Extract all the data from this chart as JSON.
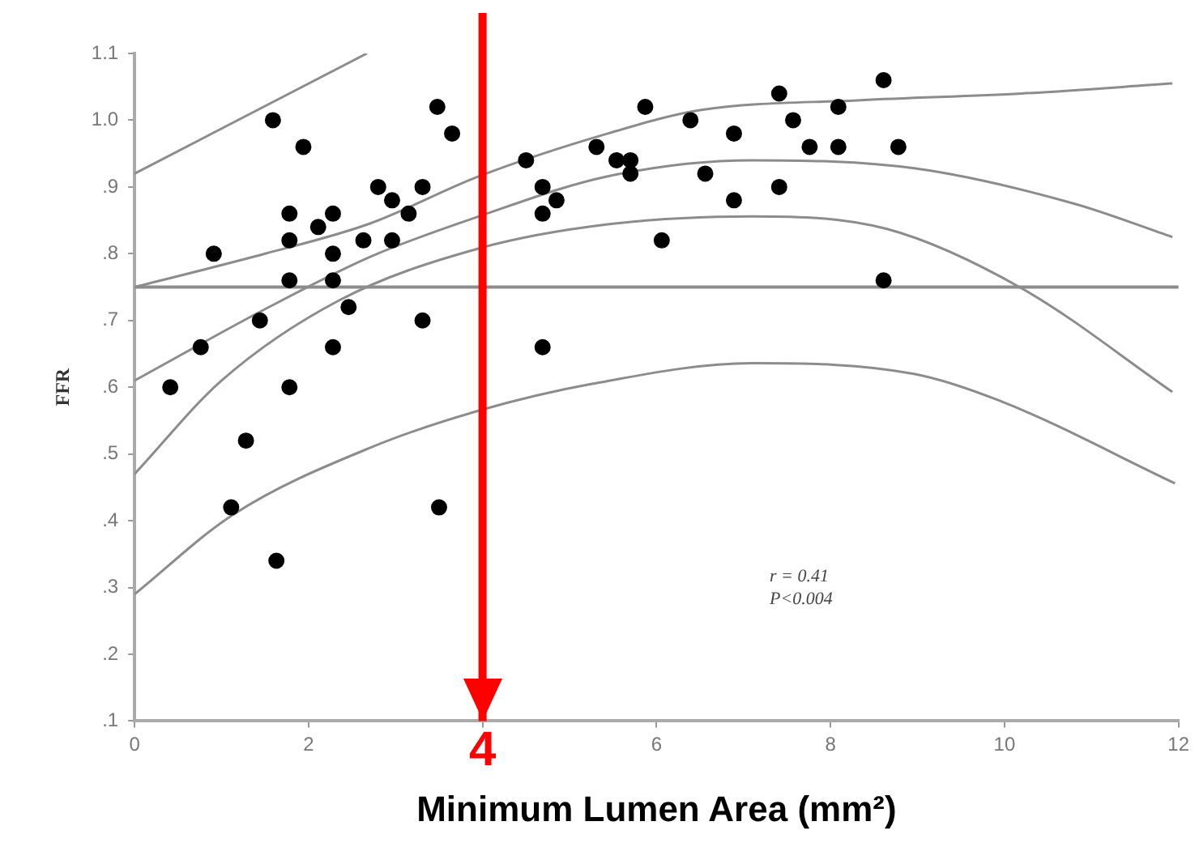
{
  "chart_data": {
    "type": "scatter",
    "xlabel": "Minimum Lumen Area (mm²)",
    "ylabel": "FFR",
    "xlim": [
      0,
      12
    ],
    "xticks": [
      0,
      2,
      {
        "value": 4,
        "label": null
      },
      6,
      8,
      10,
      12
    ],
    "ylim": [
      0.1,
      1.1
    ],
    "yticks": [
      {
        "value": 0.1,
        "label": ".1"
      },
      {
        "value": 0.2,
        "label": ".2"
      },
      {
        "value": 0.3,
        "label": ".3"
      },
      {
        "value": 0.4,
        "label": ".4"
      },
      {
        "value": 0.5,
        "label": ".5"
      },
      {
        "value": 0.6,
        "label": ".6"
      },
      {
        "value": 0.7,
        "label": ".7"
      },
      {
        "value": 0.8,
        "label": ".8"
      },
      {
        "value": 0.9,
        "label": ".9"
      },
      {
        "value": 1.0,
        "label": "1.0"
      },
      {
        "value": 1.1,
        "label": "1.1"
      }
    ],
    "grid": false,
    "legend": false,
    "marker": "circle",
    "series": [
      {
        "type": "scatter",
        "color": "#000000",
        "x": [
          0.41,
          0.76,
          0.91,
          1.44,
          1.59,
          1.78,
          1.78,
          1.78,
          1.78,
          1.94,
          2.11,
          2.28,
          2.28,
          2.28,
          2.28,
          2.46,
          2.63,
          2.8,
          2.96,
          2.96,
          3.15,
          3.31,
          3.31,
          3.48,
          3.65,
          1.28,
          1.11,
          1.63,
          3.5,
          4.5,
          4.69,
          4.69,
          4.85,
          4.69,
          5.87,
          5.31,
          5.54,
          5.7,
          5.7,
          6.39,
          6.56,
          6.89,
          6.89,
          6.06,
          7.41,
          7.57,
          7.41,
          7.76,
          8.09,
          8.09,
          8.61,
          8.61,
          8.78
        ],
        "values": [
          0.6,
          0.66,
          0.8,
          0.7,
          1.0,
          0.82,
          0.86,
          0.76,
          0.6,
          0.96,
          0.84,
          0.86,
          0.8,
          0.76,
          0.66,
          0.72,
          0.82,
          0.9,
          0.88,
          0.82,
          0.86,
          0.9,
          0.7,
          1.02,
          0.98,
          0.52,
          0.42,
          0.34,
          0.42,
          0.94,
          0.9,
          0.86,
          0.88,
          0.66,
          1.02,
          0.96,
          0.94,
          0.94,
          0.92,
          1.0,
          0.92,
          0.98,
          0.88,
          0.82,
          1.04,
          1.0,
          0.9,
          0.96,
          1.02,
          0.96,
          1.06,
          0.76,
          0.96
        ]
      },
      {
        "type": "line",
        "color": "#8c8c8c",
        "marker": "none",
        "x": [
          0,
          2.67
        ],
        "values": [
          0.92,
          1.1
        ]
      },
      {
        "type": "line",
        "color": "#8c8c8c",
        "marker": "none",
        "x": [
          0,
          1.5,
          2.7,
          3.96,
          5.44,
          6.5,
          8.35,
          10.2,
          11.93
        ],
        "values": [
          0.75,
          0.8,
          0.845,
          0.916,
          0.98,
          1.015,
          1.03,
          1.04,
          1.055
        ]
      },
      {
        "type": "line",
        "color": "#8c8c8c",
        "marker": "none",
        "x": [
          0,
          1.5,
          2.72,
          3.96,
          5.44,
          7.1,
          8.96,
          10.8,
          11.93
        ],
        "values": [
          0.61,
          0.717,
          0.796,
          0.856,
          0.916,
          0.94,
          0.928,
          0.875,
          0.825
        ]
      },
      {
        "type": "line",
        "color": "#8c8c8c",
        "marker": "none",
        "x": [
          0,
          1,
          2.35,
          3.96,
          5.44,
          7.1,
          8.65,
          10.2,
          11.93
        ],
        "values": [
          0.47,
          0.61,
          0.73,
          0.808,
          0.844,
          0.856,
          0.837,
          0.748,
          0.593
        ]
      },
      {
        "type": "line",
        "color": "#8c8c8c",
        "marker": "none",
        "x": [
          0,
          1.13,
          2.72,
          3.96,
          5.26,
          7.1,
          8.96,
          9.94,
          11.96
        ],
        "values": [
          0.29,
          0.409,
          0.51,
          0.565,
          0.605,
          0.636,
          0.62,
          0.58,
          0.456
        ]
      }
    ],
    "ref_lines": [
      {
        "axis": "y",
        "value": 0.75,
        "color": "#8c8c8c"
      },
      {
        "axis": "x",
        "value": 4,
        "label": "4",
        "color": "#ff0000"
      }
    ],
    "annotations": [
      "r = 0.41",
      "P<0.004"
    ]
  }
}
